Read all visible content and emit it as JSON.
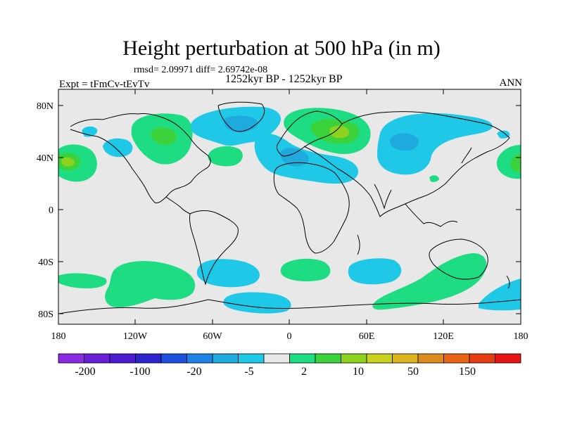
{
  "figure": {
    "title": "Height perturbation at 500 hPa (in m)",
    "stats": "rmsd= 2.09971 diff= 2.69742e-08",
    "experiment": "Expt = tFmCv-tEvTv",
    "period": "1252kyr BP - 1252kyr BP",
    "season": "ANN"
  },
  "map": {
    "projection": "cylindrical equidistant",
    "lon_ticks": [
      "180",
      "120W",
      "60W",
      "0",
      "60E",
      "120E",
      "180"
    ],
    "lat_ticks": [
      "80N",
      "40N",
      "0",
      "40S",
      "80S"
    ],
    "background_color": "#e8e8e8",
    "coastline_color": "#000000"
  },
  "colorbar": {
    "colors": [
      "#8a2be2",
      "#6a1ed8",
      "#4b1bd0",
      "#2c24cc",
      "#1e50e0",
      "#1e82e6",
      "#1eaadc",
      "#1ec8e6",
      "#e8e8e8",
      "#1edc82",
      "#3cd23c",
      "#8cd21e",
      "#c8d21e",
      "#dcb41e",
      "#dc8c1e",
      "#e66414",
      "#e63c14",
      "#e61414"
    ],
    "labels": [
      "-200",
      "-100",
      "-20",
      "-5",
      "2",
      "10",
      "50",
      "150"
    ]
  },
  "map_colors": {
    "blue_light": "#1ec8e6",
    "blue_mid": "#1eaadc",
    "green_light": "#1edc82",
    "green_mid": "#3cd23c",
    "yellow_green": "#8cd21e"
  }
}
